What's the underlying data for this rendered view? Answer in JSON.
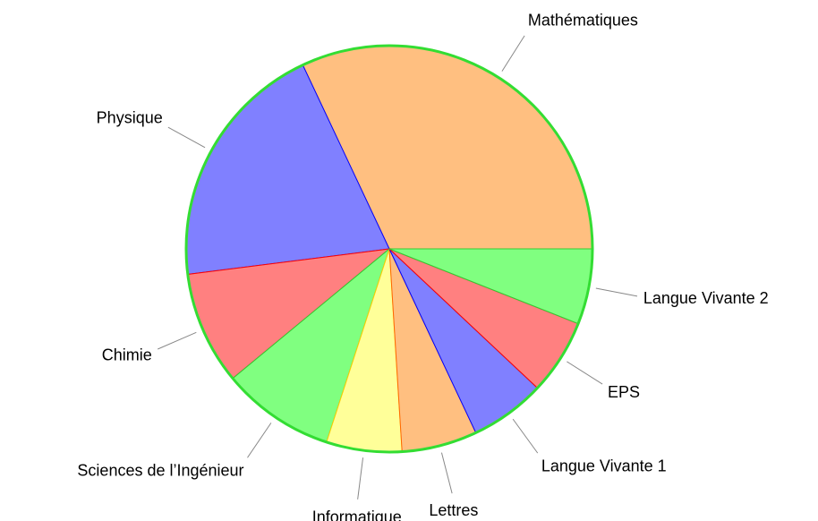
{
  "chart_data": {
    "type": "pie",
    "categories": [
      "Mathématiques",
      "Physique",
      "Chimie",
      "Sciences de l’Ingénieur",
      "Informatique",
      "Lettres",
      "Langue Vivante 1",
      "EPS",
      "Langue Vivante 2"
    ],
    "values": [
      32,
      20,
      9,
      9,
      6,
      6,
      6,
      6,
      6
    ],
    "colors": [
      "#ffbf80",
      "#8080ff",
      "#ff8080",
      "#80ff80",
      "#ffff99",
      "#ffbf80",
      "#8080ff",
      "#ff8080",
      "#80ff80"
    ],
    "edge_colors": [
      "#ff9933",
      "#0000ff",
      "#ff0000",
      "#33cc33",
      "#ffcc00",
      "#ff6600",
      "#0000ff",
      "#ff0000",
      "#33cc33"
    ]
  }
}
